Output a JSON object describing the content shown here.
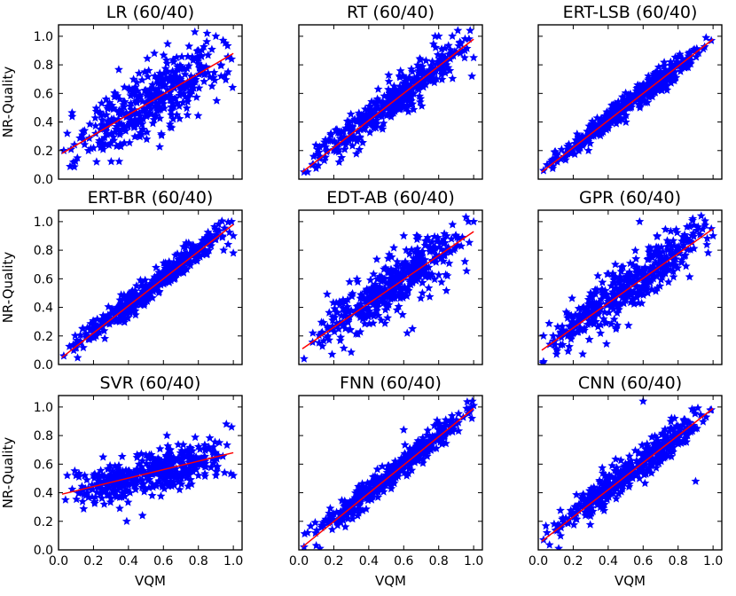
{
  "figure": {
    "colors": {
      "marker": "#0000ff",
      "fit_line": "#ff0000",
      "frame": "#000000"
    },
    "xlabel": "VQM",
    "ylabel": "NR-Quality",
    "xticks": [
      "0.0",
      "0.2",
      "0.4",
      "0.6",
      "0.8",
      "1.0"
    ],
    "yticks": [
      "0.0",
      "0.2",
      "0.4",
      "0.6",
      "0.8",
      "1.0"
    ]
  },
  "chart_data": [
    {
      "type": "scatter",
      "title": "LR (60/40)",
      "marker": "star",
      "xlim": [
        0,
        1.05
      ],
      "ylim": [
        0,
        1.08
      ],
      "xlabel": "",
      "ylabel": "NR-Quality",
      "fit": {
        "x": [
          0.02,
          1.0
        ],
        "y": [
          0.18,
          0.88
        ]
      },
      "points": {
        "seed": 11,
        "n": 420,
        "slope": 0.72,
        "intercept": 0.17,
        "noise": 0.12,
        "xmin": 0.02,
        "xmax": 1.0
      },
      "extra_points": [
        [
          0.03,
          0.2
        ],
        [
          0.05,
          0.32
        ],
        [
          0.78,
          1.03
        ],
        [
          0.85,
          1.02
        ],
        [
          0.9,
          1.0
        ],
        [
          0.93,
          0.72
        ],
        [
          0.97,
          0.75
        ],
        [
          0.99,
          0.84
        ],
        [
          0.8,
          0.9
        ]
      ]
    },
    {
      "type": "scatter",
      "title": "RT (60/40)",
      "marker": "star",
      "xlim": [
        0,
        1.05
      ],
      "ylim": [
        0,
        1.08
      ],
      "xlabel": "",
      "ylabel": "",
      "fit": {
        "x": [
          0.02,
          1.0
        ],
        "y": [
          0.05,
          0.98
        ]
      },
      "points": {
        "seed": 23,
        "n": 420,
        "slope": 0.93,
        "intercept": 0.05,
        "noise": 0.065,
        "xmin": 0.02,
        "xmax": 1.0
      },
      "extra_points": [
        [
          0.03,
          0.05
        ],
        [
          0.05,
          0.05
        ],
        [
          0.78,
          1.0
        ],
        [
          0.8,
          1.0
        ],
        [
          0.99,
          0.72
        ],
        [
          1.0,
          0.85
        ],
        [
          0.95,
          0.9
        ]
      ]
    },
    {
      "type": "scatter",
      "title": "ERT-LSB (60/40)",
      "marker": "star",
      "xlim": [
        0,
        1.05
      ],
      "ylim": [
        0,
        1.08
      ],
      "xlabel": "",
      "ylabel": "",
      "fit": {
        "x": [
          0.02,
          1.0
        ],
        "y": [
          0.05,
          0.98
        ]
      },
      "points": {
        "seed": 37,
        "n": 460,
        "slope": 0.93,
        "intercept": 0.05,
        "noise": 0.04,
        "xmin": 0.02,
        "xmax": 1.0
      },
      "extra_points": [
        [
          0.03,
          0.06
        ],
        [
          0.05,
          0.1
        ],
        [
          0.96,
          0.99
        ],
        [
          0.99,
          0.97
        ]
      ]
    },
    {
      "type": "scatter",
      "title": "ERT-BR (60/40)",
      "marker": "star",
      "xlim": [
        0,
        1.05
      ],
      "ylim": [
        0,
        1.08
      ],
      "xlabel": "",
      "ylabel": "NR-Quality",
      "fit": {
        "x": [
          0.02,
          1.0
        ],
        "y": [
          0.05,
          0.98
        ]
      },
      "points": {
        "seed": 41,
        "n": 460,
        "slope": 0.93,
        "intercept": 0.05,
        "noise": 0.045,
        "xmin": 0.02,
        "xmax": 1.0
      },
      "extra_points": [
        [
          0.03,
          0.06
        ],
        [
          0.99,
          1.0
        ],
        [
          1.0,
          0.78
        ],
        [
          0.97,
          0.84
        ],
        [
          1.0,
          0.9
        ]
      ]
    },
    {
      "type": "scatter",
      "title": "EDT-AB (60/40)",
      "marker": "star",
      "xlim": [
        0,
        1.05
      ],
      "ylim": [
        0,
        1.08
      ],
      "xlabel": "",
      "ylabel": "",
      "fit": {
        "x": [
          0.02,
          1.0
        ],
        "y": [
          0.11,
          0.93
        ]
      },
      "points": {
        "seed": 53,
        "n": 440,
        "slope": 0.82,
        "intercept": 0.11,
        "noise": 0.095,
        "xmin": 0.02,
        "xmax": 1.0
      },
      "extra_points": [
        [
          0.03,
          0.04
        ],
        [
          0.08,
          0.22
        ],
        [
          0.6,
          0.9
        ],
        [
          0.62,
          0.22
        ],
        [
          0.85,
          0.62
        ],
        [
          0.97,
          1.0
        ],
        [
          1.0,
          1.0
        ],
        [
          0.95,
          0.72
        ],
        [
          0.65,
          0.25
        ]
      ]
    },
    {
      "type": "scatter",
      "title": "GPR (60/40)",
      "marker": "star",
      "xlim": [
        0,
        1.05
      ],
      "ylim": [
        0,
        1.08
      ],
      "xlabel": "",
      "ylabel": "",
      "fit": {
        "x": [
          0.02,
          1.0
        ],
        "y": [
          0.1,
          0.95
        ]
      },
      "points": {
        "seed": 67,
        "n": 440,
        "slope": 0.85,
        "intercept": 0.1,
        "noise": 0.085,
        "xmin": 0.02,
        "xmax": 1.0
      },
      "extra_points": [
        [
          0.03,
          0.02
        ],
        [
          0.03,
          0.2
        ],
        [
          0.58,
          1.0
        ],
        [
          0.68,
          0.9
        ],
        [
          0.99,
          0.95
        ],
        [
          1.0,
          0.9
        ]
      ]
    },
    {
      "type": "scatter",
      "title": "SVR (60/40)",
      "marker": "star",
      "xlim": [
        0,
        1.05
      ],
      "ylim": [
        0,
        1.08
      ],
      "xlabel": "VQM",
      "ylabel": "NR-Quality",
      "fit": {
        "x": [
          0.02,
          1.0
        ],
        "y": [
          0.39,
          0.68
        ]
      },
      "points": {
        "seed": 79,
        "n": 420,
        "slope": 0.29,
        "intercept": 0.39,
        "noise": 0.07,
        "xmin": 0.02,
        "xmax": 1.0
      },
      "extra_points": [
        [
          0.05,
          0.52
        ],
        [
          0.1,
          0.52
        ],
        [
          0.15,
          0.52
        ],
        [
          0.2,
          0.52
        ],
        [
          0.25,
          0.52
        ],
        [
          0.3,
          0.52
        ],
        [
          0.35,
          0.52
        ],
        [
          0.4,
          0.52
        ],
        [
          0.45,
          0.53
        ],
        [
          0.6,
          0.52
        ],
        [
          0.7,
          0.52
        ],
        [
          0.8,
          0.52
        ],
        [
          0.9,
          0.52
        ],
        [
          0.95,
          0.54
        ],
        [
          1.0,
          0.52
        ],
        [
          0.04,
          0.35
        ],
        [
          0.39,
          0.2
        ],
        [
          0.48,
          0.24
        ],
        [
          0.35,
          0.29
        ],
        [
          0.62,
          0.8
        ],
        [
          0.96,
          0.88
        ],
        [
          0.99,
          0.86
        ],
        [
          0.92,
          0.75
        ]
      ]
    },
    {
      "type": "scatter",
      "title": "FNN (60/40)",
      "marker": "star",
      "xlim": [
        0,
        1.05
      ],
      "ylim": [
        0,
        1.08
      ],
      "xlabel": "VQM",
      "ylabel": "",
      "fit": {
        "x": [
          0.02,
          1.0
        ],
        "y": [
          0.02,
          0.99
        ]
      },
      "points": {
        "seed": 97,
        "n": 460,
        "slope": 0.97,
        "intercept": 0.02,
        "noise": 0.045,
        "xmin": 0.02,
        "xmax": 1.0
      },
      "extra_points": [
        [
          0.03,
          0.02
        ],
        [
          0.05,
          0.12
        ],
        [
          0.6,
          0.84
        ],
        [
          0.96,
          0.99
        ],
        [
          0.99,
          0.92
        ],
        [
          1.0,
          1.01
        ]
      ]
    },
    {
      "type": "scatter",
      "title": "CNN (60/40)",
      "marker": "star",
      "xlim": [
        0,
        1.05
      ],
      "ylim": [
        0,
        1.08
      ],
      "xlabel": "VQM",
      "ylabel": "",
      "fit": {
        "x": [
          0.02,
          1.0
        ],
        "y": [
          0.06,
          0.99
        ]
      },
      "points": {
        "seed": 113,
        "n": 460,
        "slope": 0.93,
        "intercept": 0.06,
        "noise": 0.055,
        "xmin": 0.02,
        "xmax": 1.0
      },
      "extra_points": [
        [
          0.03,
          0.07
        ],
        [
          0.05,
          0.12
        ],
        [
          0.6,
          1.04
        ],
        [
          0.78,
          0.92
        ],
        [
          0.9,
          0.48
        ],
        [
          0.99,
          0.98
        ]
      ]
    }
  ]
}
